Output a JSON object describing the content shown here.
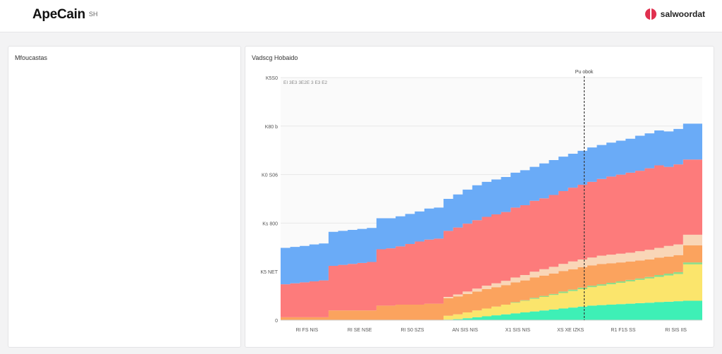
{
  "app": {
    "brand": "ApeCain",
    "brand_sub": "SH",
    "account_name": "salwoordat"
  },
  "panels": {
    "left_title": "Mfoucastas",
    "right_title": "Vadscg Hobaido"
  },
  "chart_data": {
    "type": "area",
    "stacked": true,
    "title": "Vadscg Hobaido",
    "xlabel": "",
    "ylabel": "",
    "ylim": [
      0,
      500
    ],
    "y_tick_labels": [
      "0",
      "K5 NET",
      "Ks 800",
      "K0 S06",
      "K80 b",
      "K5S0"
    ],
    "y_tick_values": [
      0,
      100,
      200,
      300,
      400,
      500
    ],
    "x_tick_labels": [
      "RI FS NIS",
      "RI SE NSE",
      "RI S0 SZS",
      "AN SIS NIS",
      "X1 SIS NIS",
      "XS XE IZKS",
      "R1 F1S SS",
      "RI SIS IIS"
    ],
    "top_annotation": "EI 3E3 3E2E 3 E3 E2",
    "marker": {
      "label": "Pu obok",
      "x": 0.72
    },
    "grid": true,
    "colors": {
      "blue": "#6aabf7",
      "red": "#fd7b7b",
      "peach": "#f9d6b7",
      "orange": "#fba35e",
      "yellow": "#fbe56c",
      "green": "#8fdd87",
      "teal": "#3ef0b6"
    },
    "series": [
      {
        "key": "teal",
        "color": "#3ef0b6",
        "values": [
          0,
          0,
          0,
          0,
          0,
          0,
          0,
          0,
          0,
          0,
          0,
          0,
          0,
          0,
          0,
          0,
          0,
          1,
          2,
          4,
          6,
          8,
          10,
          12,
          14,
          16,
          18,
          20,
          22,
          24,
          26,
          28,
          30,
          31,
          32,
          33,
          34,
          35,
          36,
          37,
          38,
          39,
          40,
          40
        ]
      },
      {
        "key": "yellow",
        "color": "#fbe56c",
        "values": [
          0,
          0,
          0,
          0,
          0,
          0,
          0,
          0,
          0,
          0,
          0,
          0,
          0,
          0,
          0,
          0,
          0,
          8,
          10,
          12,
          14,
          16,
          18,
          20,
          22,
          24,
          26,
          28,
          30,
          32,
          34,
          36,
          38,
          40,
          42,
          44,
          46,
          48,
          50,
          52,
          54,
          56,
          75,
          75
        ]
      },
      {
        "key": "green",
        "color": "#8fdd87",
        "values": [
          0,
          0,
          0,
          0,
          0,
          0,
          0,
          0,
          0,
          0,
          0,
          0,
          0,
          0,
          0,
          0,
          0,
          0,
          0,
          0,
          0,
          0,
          0,
          0,
          1,
          1,
          2,
          2,
          2,
          3,
          3,
          3,
          3,
          3,
          3,
          3,
          3,
          3,
          3,
          4,
          4,
          4,
          4,
          4
        ]
      },
      {
        "key": "orange",
        "color": "#fba35e",
        "values": [
          6,
          6,
          6,
          6,
          6,
          20,
          20,
          20,
          20,
          20,
          30,
          30,
          32,
          32,
          32,
          34,
          34,
          36,
          37,
          38,
          39,
          40,
          40,
          40,
          41,
          41,
          42,
          42,
          42,
          42,
          42,
          42,
          42,
          42,
          40,
          39,
          38,
          37,
          36,
          36,
          35,
          35,
          35,
          35
        ]
      },
      {
        "key": "peach",
        "color": "#f9d6b7",
        "values": [
          0,
          0,
          0,
          0,
          0,
          0,
          0,
          0,
          0,
          0,
          0,
          0,
          0,
          0,
          0,
          0,
          0,
          3,
          4,
          5,
          6,
          7,
          8,
          9,
          10,
          11,
          12,
          13,
          14,
          15,
          16,
          16,
          16,
          17,
          18,
          18,
          18,
          19,
          20,
          20,
          22,
          22,
          22,
          22
        ]
      },
      {
        "key": "red",
        "color": "#fd7b7b",
        "values": [
          68,
          70,
          72,
          74,
          76,
          92,
          94,
          96,
          98,
          100,
          116,
          118,
          120,
          125,
          130,
          132,
          134,
          136,
          138,
          140,
          141,
          142,
          142,
          142,
          144,
          144,
          146,
          146,
          148,
          150,
          152,
          154,
          156,
          158,
          161,
          163,
          165,
          166,
          168,
          170,
          163,
          165,
          155,
          155
        ]
      },
      {
        "key": "blue",
        "color": "#6aabf7",
        "values": [
          75,
          75,
          75,
          76,
          76,
          70,
          70,
          70,
          70,
          70,
          64,
          62,
          62,
          62,
          62,
          64,
          64,
          66,
          68,
          70,
          72,
          72,
          72,
          72,
          72,
          72,
          70,
          72,
          72,
          71,
          70,
          70,
          71,
          70,
          70,
          70,
          70,
          72,
          72,
          72,
          73,
          73,
          74,
          74
        ]
      }
    ]
  }
}
